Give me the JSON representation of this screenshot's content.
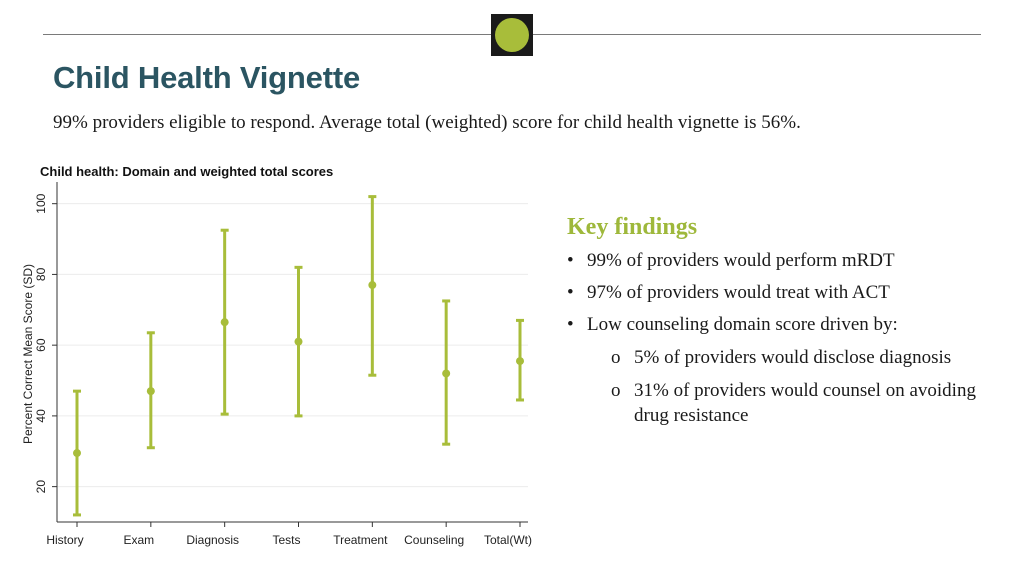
{
  "slide": {
    "title": "Child Health Vignette",
    "subtitle": "99% providers eligible to respond. Average total (weighted) score for child health vignette is 56%."
  },
  "colors": {
    "title": "#2b5562",
    "accent": "#a8bd3a",
    "errorbar": "#a8bd3a",
    "findings_heading": "#9eb83b"
  },
  "findings": {
    "heading": "Key findings",
    "items": [
      "99% of providers would perform mRDT",
      "97% of providers would treat with ACT",
      "Low counseling domain score driven by:"
    ],
    "subitems": [
      "5% of providers would disclose diagnosis",
      "31% of providers would counsel on avoiding drug resistance"
    ]
  },
  "chart_data": {
    "type": "errorbar",
    "title": "Child health: Domain and weighted total scores",
    "ylabel": "Percent Correct Mean Score (SD)",
    "xlabel": "",
    "categories": [
      "History",
      "Exam",
      "Diagnosis",
      "Tests",
      "Treatment",
      "Counseling",
      "Total(Wt)"
    ],
    "means": [
      29.5,
      47,
      66.5,
      61,
      77,
      52,
      55.5
    ],
    "lower": [
      12,
      31,
      40.5,
      40,
      51.5,
      32,
      44.5
    ],
    "upper": [
      47,
      63.5,
      92.5,
      82,
      102,
      72.5,
      67
    ],
    "ylim": [
      10,
      105
    ],
    "yticks": [
      20,
      40,
      60,
      80,
      100
    ],
    "grid": true
  }
}
